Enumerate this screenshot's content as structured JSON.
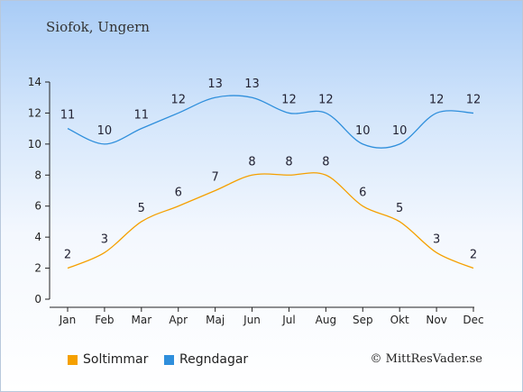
{
  "title": "Siofok, Ungern",
  "credit": "© MittResVader.se",
  "colors": {
    "sun": "#f5a000",
    "rain": "#2f8fdc",
    "axis": "#222222"
  },
  "chart_data": {
    "type": "line",
    "title": "Siofok, Ungern",
    "categories": [
      "Jan",
      "Feb",
      "Mar",
      "Apr",
      "Maj",
      "Jun",
      "Jul",
      "Aug",
      "Sep",
      "Okt",
      "Nov",
      "Dec"
    ],
    "ylim": [
      0,
      14
    ],
    "yticks": [
      0,
      2,
      4,
      6,
      8,
      10,
      12,
      14
    ],
    "grid": false,
    "legend_position": "bottom-left",
    "series": [
      {
        "name": "Soltimmar",
        "color": "#f5a000",
        "values": [
          2,
          3,
          5,
          6,
          7,
          8,
          8,
          8,
          6,
          5,
          3,
          2
        ]
      },
      {
        "name": "Regndagar",
        "color": "#2f8fdc",
        "values": [
          11,
          10,
          11,
          12,
          13,
          13,
          12,
          12,
          10,
          10,
          12,
          12
        ]
      }
    ]
  }
}
